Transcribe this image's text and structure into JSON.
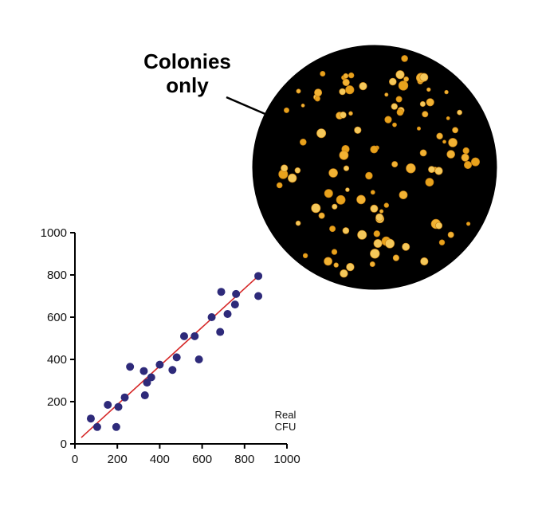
{
  "callout": {
    "line1": "Colonies",
    "line2": "only"
  },
  "chart_data": {
    "type": "scatter",
    "title": "",
    "xlabel": "",
    "ylabel": "",
    "axis_annotation": {
      "line1": "Real",
      "line2": "CFU"
    },
    "xlim": [
      0,
      1000
    ],
    "ylim": [
      0,
      1000
    ],
    "x_ticks": [
      0,
      200,
      400,
      600,
      800,
      1000
    ],
    "y_ticks": [
      0,
      200,
      400,
      600,
      800,
      1000
    ],
    "grid": false,
    "series": [
      {
        "points": [
          [
            75,
            120
          ],
          [
            105,
            80
          ],
          [
            155,
            185
          ],
          [
            195,
            80
          ],
          [
            205,
            175
          ],
          [
            235,
            220
          ],
          [
            260,
            365
          ],
          [
            325,
            345
          ],
          [
            330,
            230
          ],
          [
            340,
            290
          ],
          [
            360,
            315
          ],
          [
            400,
            375
          ],
          [
            460,
            350
          ],
          [
            480,
            410
          ],
          [
            515,
            510
          ],
          [
            565,
            510
          ],
          [
            585,
            400
          ],
          [
            645,
            600
          ],
          [
            685,
            530
          ],
          [
            690,
            720
          ],
          [
            720,
            615
          ],
          [
            755,
            660
          ],
          [
            760,
            710
          ],
          [
            865,
            795
          ],
          [
            865,
            700
          ]
        ],
        "color": "#2e2a7a"
      }
    ],
    "fit_line": {
      "from": [
        30,
        30
      ],
      "to": [
        865,
        795
      ],
      "color": "#d62828"
    }
  },
  "dish": {
    "background": "#000000",
    "colony_colors": [
      "#f2b233",
      "#e8a21c",
      "#f5c85a"
    ]
  }
}
